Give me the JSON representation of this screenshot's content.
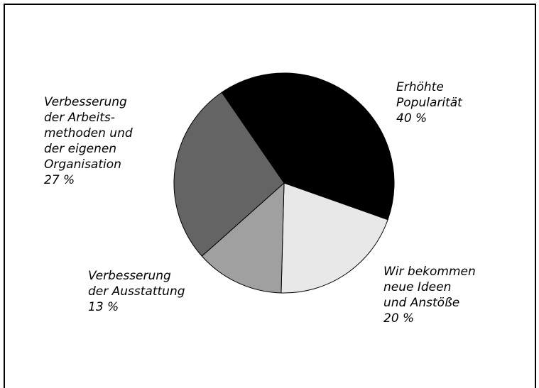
{
  "chart_data": {
    "type": "pie",
    "categories": [
      "Erhöhte\nPopularität",
      "Wir bekommen\nneue Ideen\nund Anstöße",
      "Verbesserung\nder Ausstattung",
      "Verbesserung\nder Arbeits-\nmethoden und\nder eigenen\nOrganisation"
    ],
    "values": [
      40,
      20,
      13,
      27
    ],
    "value_labels": [
      "40 %",
      "20 %",
      "13 %",
      "27 %"
    ],
    "colors": [
      "#000000",
      "#e8e8e8",
      "#a0a0a0",
      "#646464"
    ]
  }
}
